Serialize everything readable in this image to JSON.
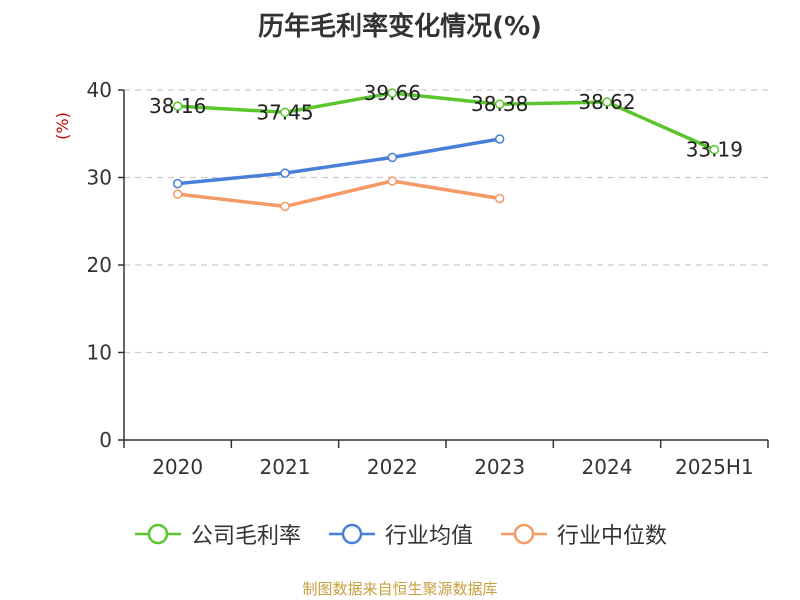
{
  "chart_data": {
    "type": "line",
    "title": "历年毛利率变化情况(%)",
    "ylabel": "(%)",
    "categories": [
      "2020",
      "2021",
      "2022",
      "2023",
      "2024",
      "2025H1"
    ],
    "ylim": [
      0,
      40
    ],
    "yticks": [
      0,
      10,
      20,
      30,
      40
    ],
    "grid": true,
    "legend_position": "bottom",
    "series": [
      {
        "name": "公司毛利率",
        "color": "#5ac62b",
        "values": [
          38.16,
          37.45,
          39.66,
          38.38,
          38.62,
          33.19
        ],
        "labels": [
          "38.16",
          "37.45",
          "39.66",
          "38.38",
          "38.62",
          "33.19"
        ]
      },
      {
        "name": "行业均值",
        "color": "#4a7fd8",
        "values": [
          29.3,
          30.5,
          32.3,
          34.4,
          null,
          null
        ]
      },
      {
        "name": "行业中位数",
        "color": "#f59a66",
        "values": [
          28.1,
          26.7,
          29.6,
          27.6,
          null,
          null
        ]
      }
    ]
  },
  "source_text": "制图数据来自恒生聚源数据库",
  "ylabel_color": "#cc0000"
}
